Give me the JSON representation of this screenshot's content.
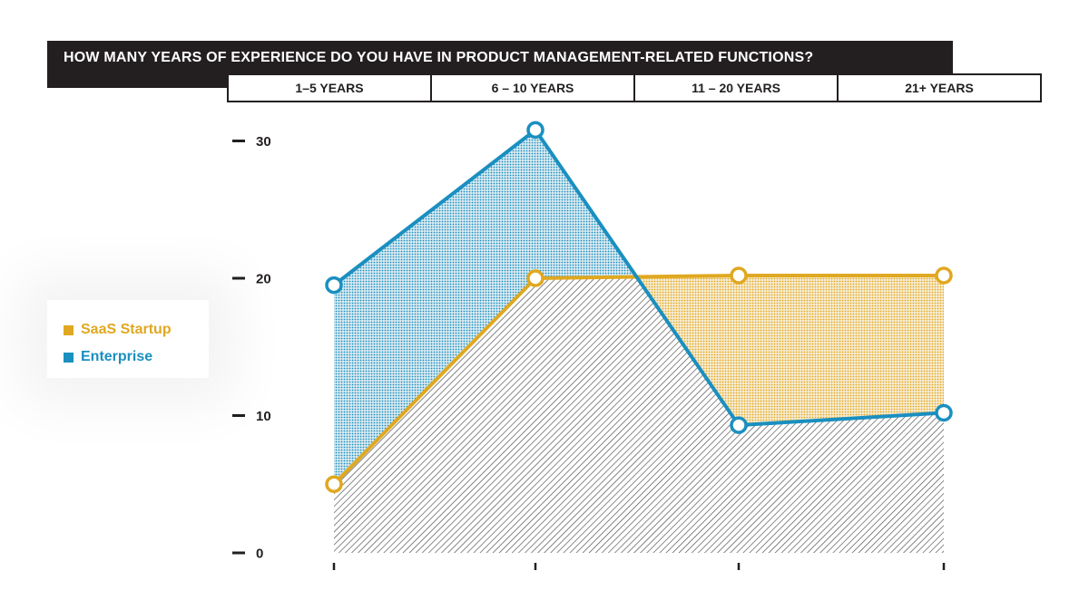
{
  "chart_data": {
    "type": "area",
    "title": "HOW MANY YEARS OF EXPERIENCE DO YOU HAVE IN PRODUCT MANAGEMENT-RELATED FUNCTIONS?",
    "categories": [
      "1–5 YEARS",
      "6 – 10 YEARS",
      "11 – 20 YEARS",
      "21+ YEARS"
    ],
    "series": [
      {
        "name": "SaaS Startup",
        "values": [
          5,
          20,
          20.2,
          20.2
        ],
        "color": "#e0a820"
      },
      {
        "name": "Enterprise",
        "values": [
          19.5,
          30.8,
          9.3,
          10.2
        ],
        "color": "#1a8fc0"
      }
    ],
    "yticks": [
      "0",
      "10",
      "20",
      "30"
    ],
    "ylim": [
      0,
      30
    ],
    "legend_position": "left",
    "overlap_color": "#4a4a4a"
  }
}
